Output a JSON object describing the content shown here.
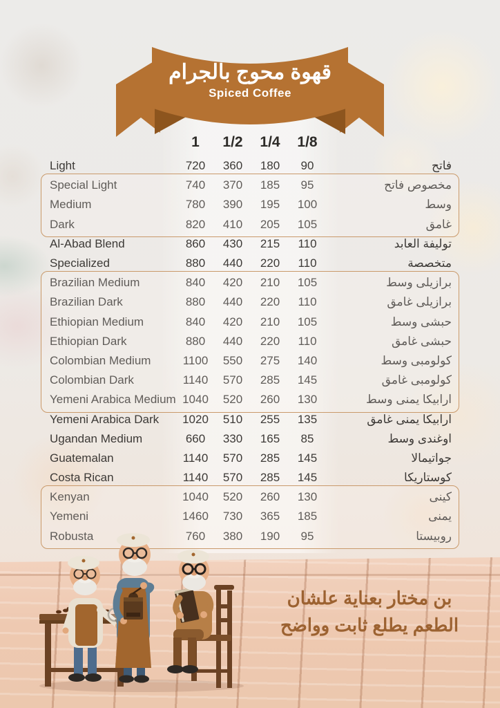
{
  "banner": {
    "title_ar": "قهوة محوج بالجرام",
    "title_en": "Spiced Coffee"
  },
  "table": {
    "columns": [
      "1",
      "1/2",
      "1/4",
      "1/8"
    ],
    "rows": [
      {
        "en": "Light",
        "ar": "فاتح",
        "prices": [
          "720",
          "360",
          "180",
          "90"
        ]
      },
      {
        "en": "Special Light",
        "ar": "مخصوص فاتح",
        "prices": [
          "740",
          "370",
          "185",
          "95"
        ]
      },
      {
        "en": "Medium",
        "ar": "وسط",
        "prices": [
          "780",
          "390",
          "195",
          "100"
        ]
      },
      {
        "en": "Dark",
        "ar": "غامق",
        "prices": [
          "820",
          "410",
          "205",
          "105"
        ]
      },
      {
        "en": "Al-Abad Blend",
        "ar": "توليفة العابد",
        "prices": [
          "860",
          "430",
          "215",
          "110"
        ]
      },
      {
        "en": "Specialized",
        "ar": "متخصصة",
        "prices": [
          "880",
          "440",
          "220",
          "110"
        ]
      },
      {
        "en": "Brazilian Medium",
        "ar": "برازيلى وسط",
        "prices": [
          "840",
          "420",
          "210",
          "105"
        ]
      },
      {
        "en": "Brazilian Dark",
        "ar": "برازيلى غامق",
        "prices": [
          "880",
          "440",
          "220",
          "110"
        ]
      },
      {
        "en": "Ethiopian Medium",
        "ar": "حبشى وسط",
        "prices": [
          "840",
          "420",
          "210",
          "105"
        ]
      },
      {
        "en": "Ethiopian Dark",
        "ar": "حبشى غامق",
        "prices": [
          "880",
          "440",
          "220",
          "110"
        ]
      },
      {
        "en": "Colombian Medium",
        "ar": "كولومبى وسط",
        "prices": [
          "1100",
          "550",
          "275",
          "140"
        ]
      },
      {
        "en": "Colombian Dark",
        "ar": "كولومبى غامق",
        "prices": [
          "1140",
          "570",
          "285",
          "145"
        ]
      },
      {
        "en": "Yemeni Arabica Medium",
        "ar": "ارابيكا يمنى وسط",
        "prices": [
          "1040",
          "520",
          "260",
          "130"
        ]
      },
      {
        "en": "Yemeni Arabica Dark",
        "ar": "ارابيكا يمنى غامق",
        "prices": [
          "1020",
          "510",
          "255",
          "135"
        ]
      },
      {
        "en": "Ugandan Medium",
        "ar": "اوغندى وسط",
        "prices": [
          "660",
          "330",
          "165",
          "85"
        ]
      },
      {
        "en": "Guatemalan",
        "ar": "جواتيمالا",
        "prices": [
          "1140",
          "570",
          "285",
          "145"
        ]
      },
      {
        "en": "Costa Rican",
        "ar": "كوستاريكا",
        "prices": [
          "1140",
          "570",
          "285",
          "145"
        ]
      },
      {
        "en": "Kenyan",
        "ar": "كينى",
        "prices": [
          "1040",
          "520",
          "260",
          "130"
        ]
      },
      {
        "en": "Yemeni",
        "ar": "يمنى",
        "prices": [
          "1460",
          "730",
          "365",
          "185"
        ]
      },
      {
        "en": "Robusta",
        "ar": "روبيستا",
        "prices": [
          "760",
          "380",
          "190",
          "95"
        ]
      }
    ],
    "groups": [
      {
        "start": 1,
        "end": 3
      },
      {
        "start": 6,
        "end": 12
      },
      {
        "start": 17,
        "end": 19
      }
    ]
  },
  "footer": {
    "line1": "بن مختار بعناية علشان",
    "line2": "الطعم يطلع ثابت وواضح"
  },
  "colors": {
    "ribbon": "#b57232",
    "ribbon_fold": "#8d551e",
    "group_box_border": "#c9996a",
    "footer_text": "#9c6231",
    "table_text": "#3c3936"
  }
}
